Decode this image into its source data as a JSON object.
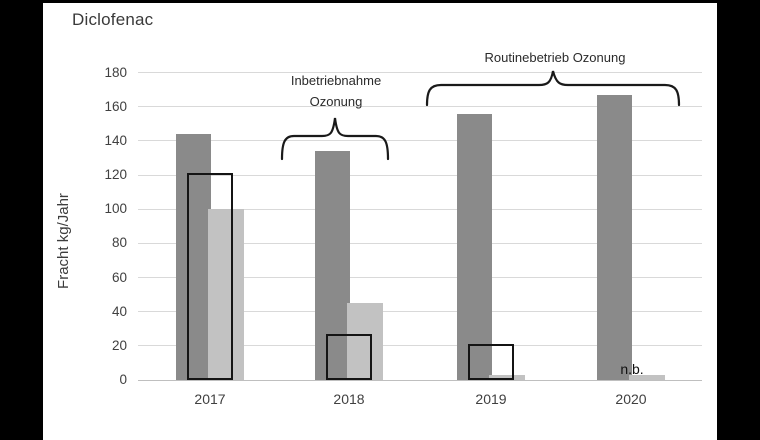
{
  "window": {
    "background": "#ffffff",
    "frame_color": "#000000"
  },
  "chart_data": {
    "type": "bar",
    "title": "Diclofenac",
    "ylabel": "Fracht kg/Jahr",
    "xlabel": "",
    "ylim": [
      0,
      180
    ],
    "yticks": [
      0,
      20,
      40,
      60,
      80,
      100,
      120,
      140,
      160,
      180
    ],
    "grid": true,
    "legend": "none",
    "categories": [
      "2017",
      "2018",
      "2019",
      "2020"
    ],
    "series": [
      {
        "key": "dark-gray",
        "name": "dark gray bar",
        "color": "#8a8a8a",
        "values": [
          144,
          134,
          156,
          167
        ]
      },
      {
        "key": "outline",
        "name": "black outline bar",
        "color": "#141414",
        "style": "outline",
        "values": [
          121,
          27,
          21,
          null
        ]
      },
      {
        "key": "light-gray",
        "name": "light gray bar",
        "color": "#c2c2c2",
        "values": [
          100,
          45,
          3,
          3
        ]
      }
    ],
    "missing_value_label": "n.b.",
    "annotations": [
      {
        "text": "Inbetriebnahme\nOzonung",
        "spans_categories": [
          "2018"
        ]
      },
      {
        "text": "Routinebetrieb Ozonung",
        "spans_categories": [
          "2019",
          "2020"
        ]
      }
    ],
    "colors": {
      "gridline": "#d9d9d9",
      "axis_line": "#bfbfbf",
      "text": "#404040"
    }
  }
}
